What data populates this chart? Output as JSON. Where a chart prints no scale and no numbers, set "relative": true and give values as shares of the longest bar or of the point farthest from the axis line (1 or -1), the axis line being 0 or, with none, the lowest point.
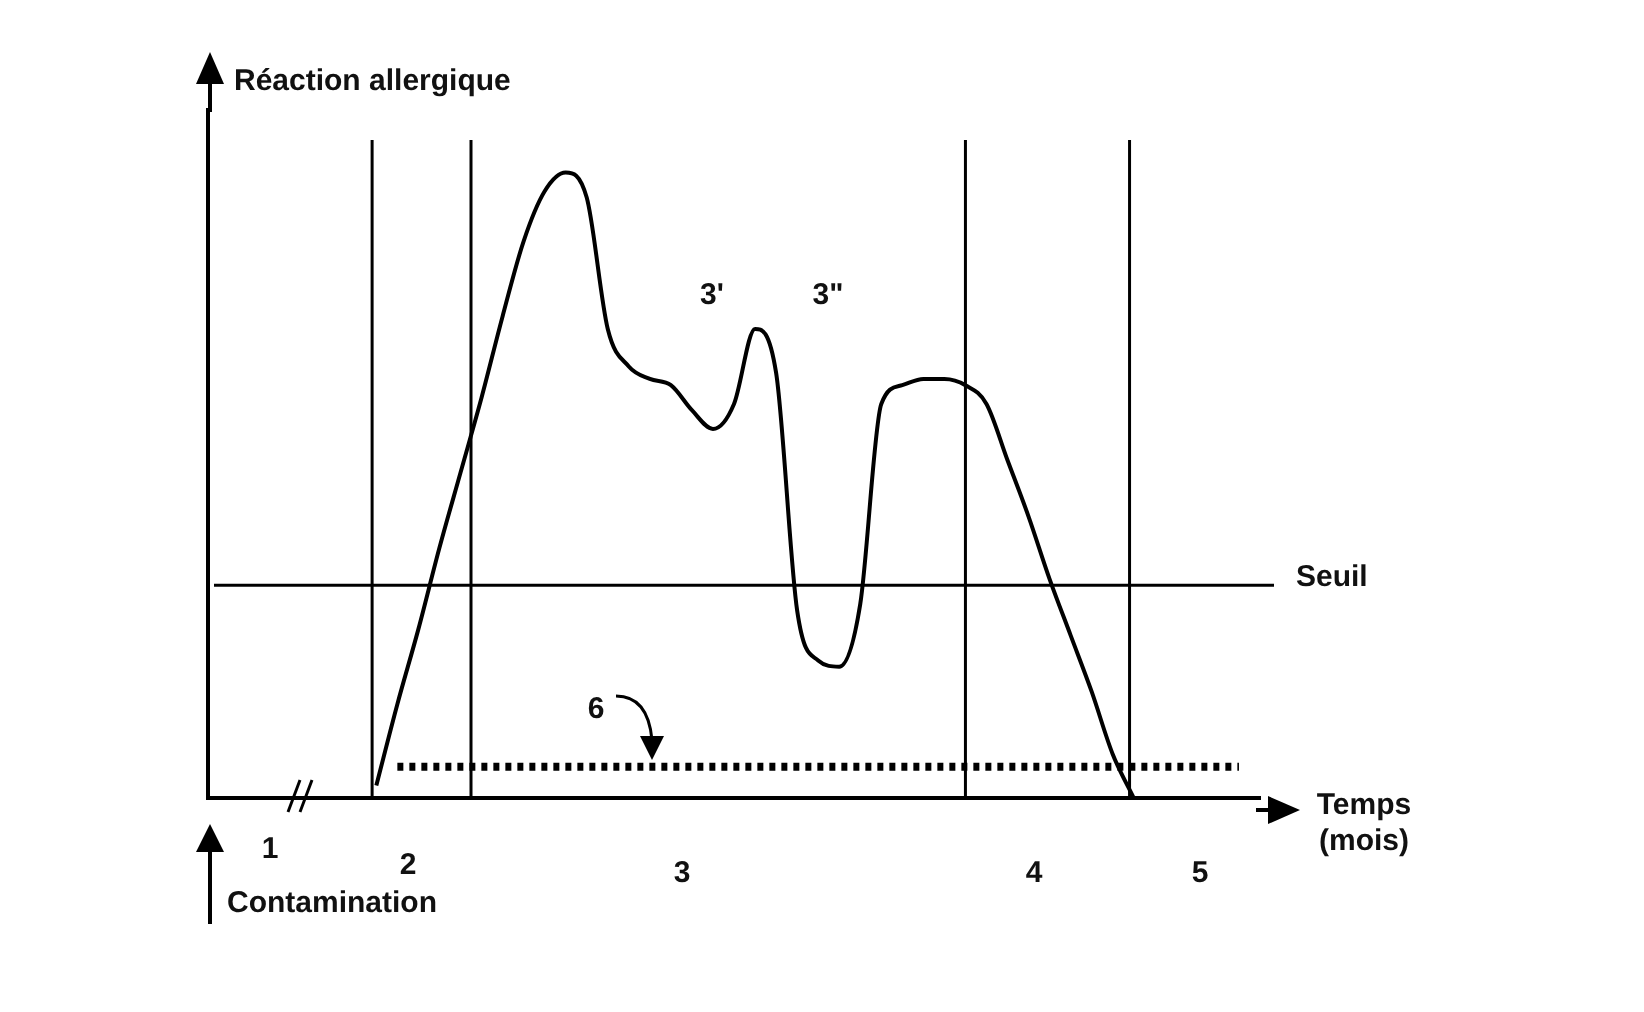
{
  "chart_data": {
    "type": "line",
    "relative": true,
    "ylabel": "Réaction allergique",
    "xlabel": "Temps (mois)",
    "marker": "none",
    "categories": [
      null,
      null,
      null,
      null,
      null,
      null,
      null,
      null,
      null,
      null,
      null,
      null,
      null,
      null,
      null,
      null,
      null,
      null,
      null,
      null,
      null,
      null,
      null,
      null,
      null,
      null,
      null,
      null,
      null,
      null,
      null,
      null,
      null,
      null,
      null,
      null,
      null,
      null,
      null,
      null,
      null,
      null,
      null,
      null,
      null,
      null,
      null,
      null,
      null,
      null,
      null
    ],
    "series": [
      {
        "color": "#000000",
        "line_style": "solid",
        "values": [
          null,
          null,
          null,
          null,
          null,
          null,
          null,
          null,
          0.02,
          0.15,
          0.27,
          0.4,
          0.52,
          0.64,
          0.77,
          0.89,
          0.97,
          1,
          0.96,
          0.75,
          0.69,
          0.67,
          0.66,
          0.62,
          0.59,
          0.63,
          0.75,
          0.68,
          0.3,
          0.22,
          0.21,
          0.31,
          0.63,
          0.66,
          0.67,
          0.67,
          0.66,
          0.63,
          0.54,
          0.45,
          0.35,
          0.26,
          0.17,
          0.07,
          0,
          null,
          null,
          null,
          null,
          null,
          null
        ]
      },
      {
        "color": "#000000",
        "line_style": "dotted",
        "values": [
          null,
          null,
          null,
          null,
          null,
          null,
          null,
          null,
          null,
          0.05,
          0.05,
          0.05,
          0.05,
          0.05,
          0.05,
          0.05,
          0.05,
          0.05,
          0.05,
          0.05,
          0.05,
          0.05,
          0.05,
          0.05,
          0.05,
          0.05,
          0.05,
          0.05,
          0.05,
          0.05,
          0.05,
          0.05,
          0.05,
          0.05,
          0.05,
          0.05,
          0.05,
          0.05,
          0.05,
          0.05,
          0.05,
          0.05,
          0.05,
          0.05,
          0.05,
          0.05,
          0.05,
          0.05,
          0.05,
          0.05,
          null
        ]
      }
    ],
    "ref_lines": [
      {
        "axis": "y",
        "value": 0.34,
        "label": "Seuil"
      }
    ],
    "annotations": [
      "1",
      "2",
      "3",
      "3'",
      "3\"",
      "4",
      "5",
      "6",
      "Contamination"
    ]
  }
}
